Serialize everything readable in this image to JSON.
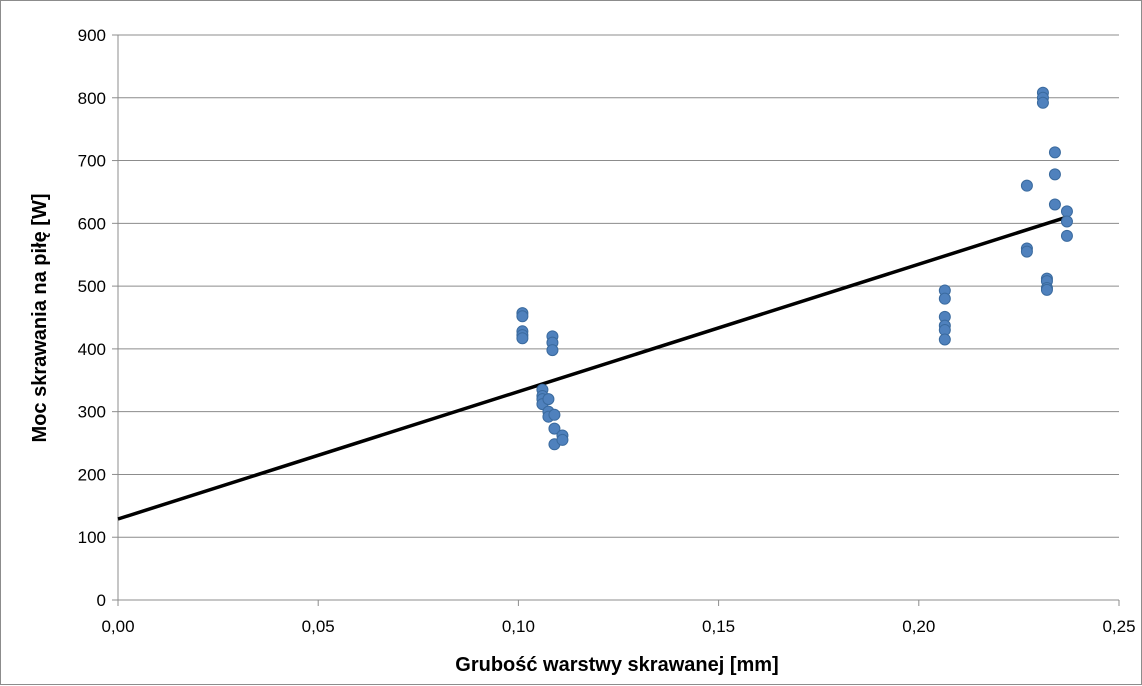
{
  "chart_data": {
    "type": "scatter",
    "xlabel": "Grubość warstwy skrawanej [mm]",
    "ylabel": "Moc skrawania na piłę [W]",
    "xlim": [
      0,
      0.25
    ],
    "ylim": [
      0,
      900
    ],
    "x_ticks": [
      0,
      0.05,
      0.1,
      0.15,
      0.2,
      0.25
    ],
    "x_tick_labels": [
      "0,00",
      "0,05",
      "0,10",
      "0,15",
      "0,20",
      "0,25"
    ],
    "y_ticks": [
      0,
      100,
      200,
      300,
      400,
      500,
      600,
      700,
      800,
      900
    ],
    "y_tick_labels": [
      "0",
      "100",
      "200",
      "300",
      "400",
      "500",
      "600",
      "700",
      "800",
      "900"
    ],
    "grid": "horizontal",
    "legend": "none",
    "point_color": "#4f81bd",
    "line_color": "#000000",
    "series": [
      {
        "points": [
          [
            0.101,
            457
          ],
          [
            0.101,
            452
          ],
          [
            0.101,
            428
          ],
          [
            0.101,
            422
          ],
          [
            0.101,
            417
          ],
          [
            0.1085,
            420
          ],
          [
            0.1085,
            410
          ],
          [
            0.1085,
            398
          ],
          [
            0.106,
            335
          ],
          [
            0.106,
            325
          ],
          [
            0.106,
            320
          ],
          [
            0.106,
            312
          ],
          [
            0.1075,
            320
          ],
          [
            0.1075,
            300
          ],
          [
            0.1075,
            292
          ],
          [
            0.109,
            295
          ],
          [
            0.109,
            273
          ],
          [
            0.109,
            248
          ],
          [
            0.111,
            262
          ],
          [
            0.111,
            255
          ],
          [
            0.2065,
            493
          ],
          [
            0.2065,
            480
          ],
          [
            0.2065,
            451
          ],
          [
            0.2065,
            437
          ],
          [
            0.2065,
            430
          ],
          [
            0.2065,
            415
          ],
          [
            0.227,
            660
          ],
          [
            0.227,
            560
          ],
          [
            0.227,
            555
          ],
          [
            0.231,
            808
          ],
          [
            0.231,
            800
          ],
          [
            0.231,
            792
          ],
          [
            0.232,
            512
          ],
          [
            0.232,
            508
          ],
          [
            0.232,
            497
          ],
          [
            0.232,
            494
          ],
          [
            0.234,
            713
          ],
          [
            0.234,
            678
          ],
          [
            0.234,
            630
          ],
          [
            0.237,
            619
          ],
          [
            0.237,
            603
          ],
          [
            0.237,
            580
          ]
        ]
      }
    ],
    "trendline": {
      "x": [
        0,
        0.237
      ],
      "y": [
        129,
        610
      ]
    }
  }
}
